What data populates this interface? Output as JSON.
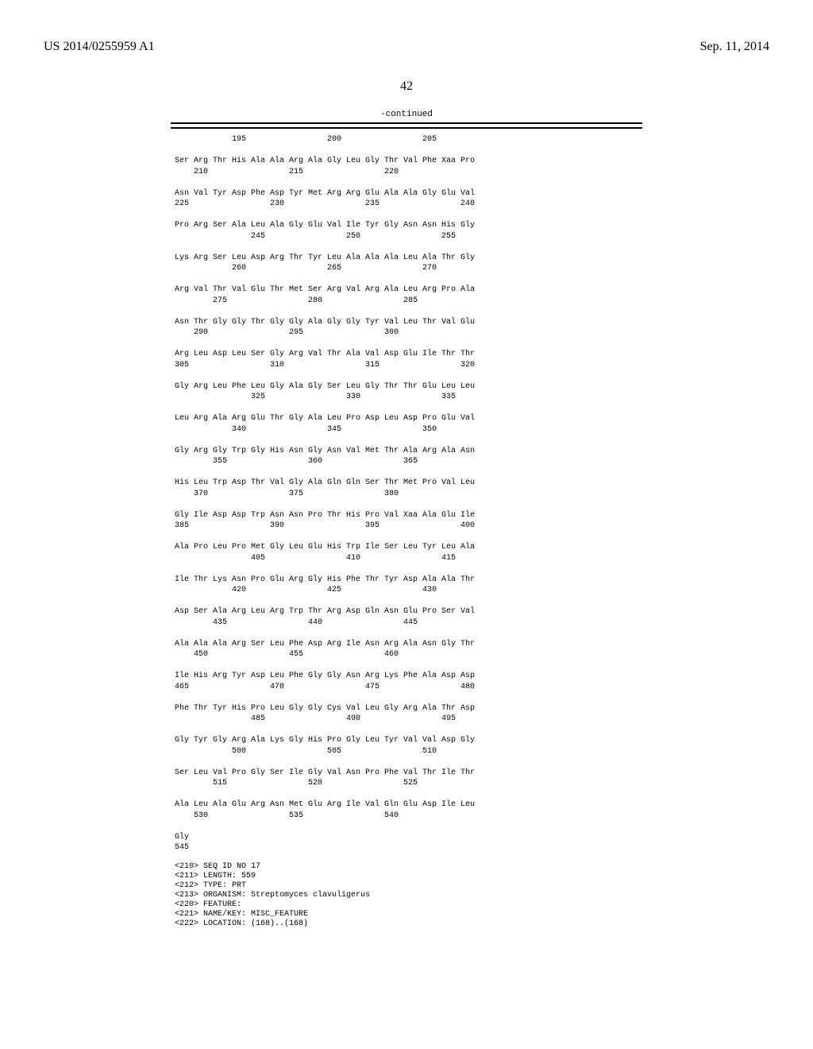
{
  "header": {
    "left": "US 2014/0255959 A1",
    "right": "Sep. 11, 2014"
  },
  "page_number": "42",
  "continued_label": "-continued",
  "sequence_rows": [
    "            195                 200                 205",
    "",
    "Ser Arg Thr His Ala Ala Arg Ala Gly Leu Gly Thr Val Phe Xaa Pro",
    "    210                 215                 220",
    "",
    "Asn Val Tyr Asp Phe Asp Tyr Met Arg Arg Glu Ala Ala Gly Glu Val",
    "225                 230                 235                 240",
    "",
    "Pro Arg Ser Ala Leu Ala Gly Glu Val Ile Tyr Gly Asn Asn His Gly",
    "                245                 250                 255",
    "",
    "Lys Arg Ser Leu Asp Arg Thr Tyr Leu Ala Ala Ala Leu Ala Thr Gly",
    "            260                 265                 270",
    "",
    "Arg Val Thr Val Glu Thr Met Ser Arg Val Arg Ala Leu Arg Pro Ala",
    "        275                 280                 285",
    "",
    "Asn Thr Gly Gly Thr Gly Gly Ala Gly Gly Tyr Val Leu Thr Val Glu",
    "    290                 295                 300",
    "",
    "Arg Leu Asp Leu Ser Gly Arg Val Thr Ala Val Asp Glu Ile Thr Thr",
    "305                 310                 315                 320",
    "",
    "Gly Arg Leu Phe Leu Gly Ala Gly Ser Leu Gly Thr Thr Glu Leu Leu",
    "                325                 330                 335",
    "",
    "Leu Arg Ala Arg Glu Thr Gly Ala Leu Pro Asp Leu Asp Pro Glu Val",
    "            340                 345                 350",
    "",
    "Gly Arg Gly Trp Gly His Asn Gly Asn Val Met Thr Ala Arg Ala Asn",
    "        355                 360                 365",
    "",
    "His Leu Trp Asp Thr Val Gly Ala Gln Gln Ser Thr Met Pro Val Leu",
    "    370                 375                 380",
    "",
    "Gly Ile Asp Asp Trp Asn Asn Pro Thr His Pro Val Xaa Ala Glu Ile",
    "385                 390                 395                 400",
    "",
    "Ala Pro Leu Pro Met Gly Leu Glu His Trp Ile Ser Leu Tyr Leu Ala",
    "                405                 410                 415",
    "",
    "Ile Thr Lys Asn Pro Glu Arg Gly His Phe Thr Tyr Asp Ala Ala Thr",
    "            420                 425                 430",
    "",
    "Asp Ser Ala Arg Leu Arg Trp Thr Arg Asp Gln Asn Glu Pro Ser Val",
    "        435                 440                 445",
    "",
    "Ala Ala Ala Arg Ser Leu Phe Asp Arg Ile Asn Arg Ala Asn Gly Thr",
    "    450                 455                 460",
    "",
    "Ile His Arg Tyr Asp Leu Phe Gly Gly Asn Arg Lys Phe Ala Asp Asp",
    "465                 470                 475                 480",
    "",
    "Phe Thr Tyr His Pro Leu Gly Gly Cys Val Leu Gly Arg Ala Thr Asp",
    "                485                 490                 495",
    "",
    "Gly Tyr Gly Arg Ala Lys Gly His Pro Gly Leu Tyr Val Val Asp Gly",
    "            500                 505                 510",
    "",
    "Ser Leu Val Pro Gly Ser Ile Gly Val Asn Pro Phe Val Thr Ile Thr",
    "        515                 520                 525",
    "",
    "Ala Leu Ala Glu Arg Asn Met Glu Arg Ile Val Gln Glu Asp Ile Leu",
    "    530                 535                 540",
    "",
    "Gly",
    "545"
  ],
  "metadata_lines": [
    "<210> SEQ ID NO 17",
    "<211> LENGTH: 559",
    "<212> TYPE: PRT",
    "<213> ORGANISM: Streptomyces clavuligerus",
    "<220> FEATURE:",
    "<221> NAME/KEY: MISC_FEATURE",
    "<222> LOCATION: (168)..(168)"
  ]
}
